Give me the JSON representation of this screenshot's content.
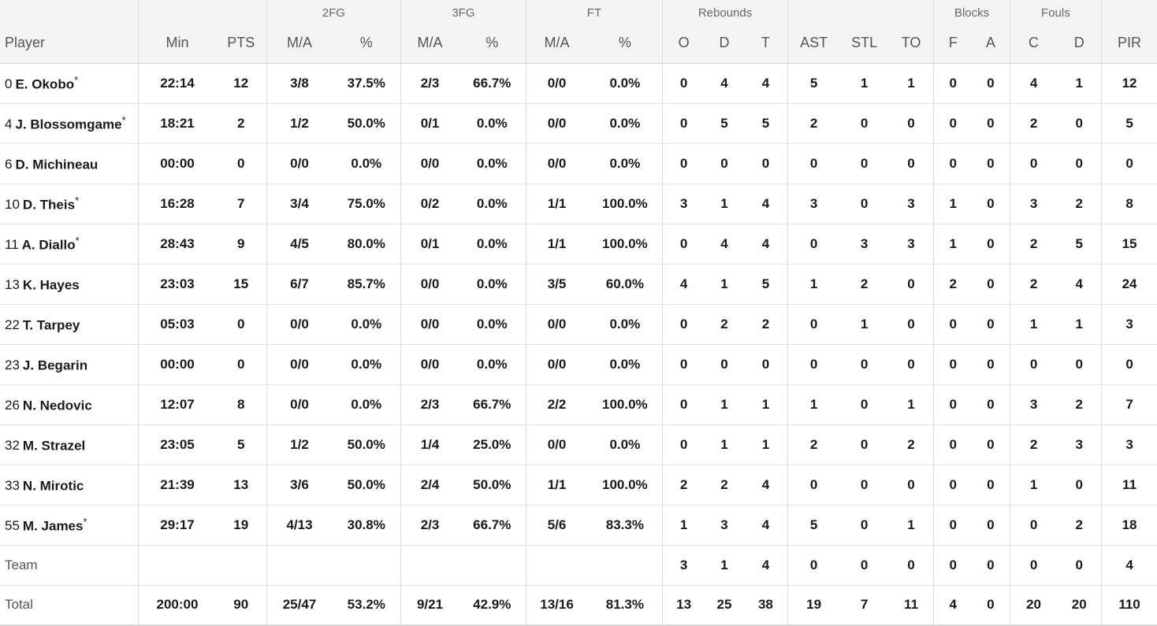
{
  "header": {
    "groups": {
      "fg2": "2FG",
      "fg3": "3FG",
      "ft": "FT",
      "rebounds": "Rebounds",
      "blocks": "Blocks",
      "fouls": "Fouls"
    },
    "columns": {
      "player": "Player",
      "min": "Min",
      "pts": "PTS",
      "fg2_ma": "M/A",
      "fg2_pct": "%",
      "fg3_ma": "M/A",
      "fg3_pct": "%",
      "ft_ma": "M/A",
      "ft_pct": "%",
      "reb_o": "O",
      "reb_d": "D",
      "reb_t": "T",
      "ast": "AST",
      "stl": "STL",
      "to": "TO",
      "blk_f": "F",
      "blk_a": "A",
      "foul_c": "C",
      "foul_d": "D",
      "pir": "PIR"
    }
  },
  "players": [
    {
      "num": "0",
      "name": "E. Okobo",
      "star": "*",
      "min": "22:14",
      "pts": "12",
      "fg2_ma": "3/8",
      "fg2_pct": "37.5%",
      "fg3_ma": "2/3",
      "fg3_pct": "66.7%",
      "ft_ma": "0/0",
      "ft_pct": "0.0%",
      "reb_o": "0",
      "reb_d": "4",
      "reb_t": "4",
      "ast": "5",
      "stl": "1",
      "to": "1",
      "blk_f": "0",
      "blk_a": "0",
      "foul_c": "4",
      "foul_d": "1",
      "pir": "12"
    },
    {
      "num": "4",
      "name": "J. Blossomgame",
      "star": "*",
      "min": "18:21",
      "pts": "2",
      "fg2_ma": "1/2",
      "fg2_pct": "50.0%",
      "fg3_ma": "0/1",
      "fg3_pct": "0.0%",
      "ft_ma": "0/0",
      "ft_pct": "0.0%",
      "reb_o": "0",
      "reb_d": "5",
      "reb_t": "5",
      "ast": "2",
      "stl": "0",
      "to": "0",
      "blk_f": "0",
      "blk_a": "0",
      "foul_c": "2",
      "foul_d": "0",
      "pir": "5"
    },
    {
      "num": "6",
      "name": "D. Michineau",
      "star": "",
      "min": "00:00",
      "pts": "0",
      "fg2_ma": "0/0",
      "fg2_pct": "0.0%",
      "fg3_ma": "0/0",
      "fg3_pct": "0.0%",
      "ft_ma": "0/0",
      "ft_pct": "0.0%",
      "reb_o": "0",
      "reb_d": "0",
      "reb_t": "0",
      "ast": "0",
      "stl": "0",
      "to": "0",
      "blk_f": "0",
      "blk_a": "0",
      "foul_c": "0",
      "foul_d": "0",
      "pir": "0"
    },
    {
      "num": "10",
      "name": "D. Theis",
      "star": "*",
      "min": "16:28",
      "pts": "7",
      "fg2_ma": "3/4",
      "fg2_pct": "75.0%",
      "fg3_ma": "0/2",
      "fg3_pct": "0.0%",
      "ft_ma": "1/1",
      "ft_pct": "100.0%",
      "reb_o": "3",
      "reb_d": "1",
      "reb_t": "4",
      "ast": "3",
      "stl": "0",
      "to": "3",
      "blk_f": "1",
      "blk_a": "0",
      "foul_c": "3",
      "foul_d": "2",
      "pir": "8"
    },
    {
      "num": "11",
      "name": "A. Diallo",
      "star": "*",
      "min": "28:43",
      "pts": "9",
      "fg2_ma": "4/5",
      "fg2_pct": "80.0%",
      "fg3_ma": "0/1",
      "fg3_pct": "0.0%",
      "ft_ma": "1/1",
      "ft_pct": "100.0%",
      "reb_o": "0",
      "reb_d": "4",
      "reb_t": "4",
      "ast": "0",
      "stl": "3",
      "to": "3",
      "blk_f": "1",
      "blk_a": "0",
      "foul_c": "2",
      "foul_d": "5",
      "pir": "15"
    },
    {
      "num": "13",
      "name": "K. Hayes",
      "star": "",
      "min": "23:03",
      "pts": "15",
      "fg2_ma": "6/7",
      "fg2_pct": "85.7%",
      "fg3_ma": "0/0",
      "fg3_pct": "0.0%",
      "ft_ma": "3/5",
      "ft_pct": "60.0%",
      "reb_o": "4",
      "reb_d": "1",
      "reb_t": "5",
      "ast": "1",
      "stl": "2",
      "to": "0",
      "blk_f": "2",
      "blk_a": "0",
      "foul_c": "2",
      "foul_d": "4",
      "pir": "24"
    },
    {
      "num": "22",
      "name": "T. Tarpey",
      "star": "",
      "min": "05:03",
      "pts": "0",
      "fg2_ma": "0/0",
      "fg2_pct": "0.0%",
      "fg3_ma": "0/0",
      "fg3_pct": "0.0%",
      "ft_ma": "0/0",
      "ft_pct": "0.0%",
      "reb_o": "0",
      "reb_d": "2",
      "reb_t": "2",
      "ast": "0",
      "stl": "1",
      "to": "0",
      "blk_f": "0",
      "blk_a": "0",
      "foul_c": "1",
      "foul_d": "1",
      "pir": "3"
    },
    {
      "num": "23",
      "name": "J. Begarin",
      "star": "",
      "min": "00:00",
      "pts": "0",
      "fg2_ma": "0/0",
      "fg2_pct": "0.0%",
      "fg3_ma": "0/0",
      "fg3_pct": "0.0%",
      "ft_ma": "0/0",
      "ft_pct": "0.0%",
      "reb_o": "0",
      "reb_d": "0",
      "reb_t": "0",
      "ast": "0",
      "stl": "0",
      "to": "0",
      "blk_f": "0",
      "blk_a": "0",
      "foul_c": "0",
      "foul_d": "0",
      "pir": "0"
    },
    {
      "num": "26",
      "name": "N. Nedovic",
      "star": "",
      "min": "12:07",
      "pts": "8",
      "fg2_ma": "0/0",
      "fg2_pct": "0.0%",
      "fg3_ma": "2/3",
      "fg3_pct": "66.7%",
      "ft_ma": "2/2",
      "ft_pct": "100.0%",
      "reb_o": "0",
      "reb_d": "1",
      "reb_t": "1",
      "ast": "1",
      "stl": "0",
      "to": "1",
      "blk_f": "0",
      "blk_a": "0",
      "foul_c": "3",
      "foul_d": "2",
      "pir": "7"
    },
    {
      "num": "32",
      "name": "M. Strazel",
      "star": "",
      "min": "23:05",
      "pts": "5",
      "fg2_ma": "1/2",
      "fg2_pct": "50.0%",
      "fg3_ma": "1/4",
      "fg3_pct": "25.0%",
      "ft_ma": "0/0",
      "ft_pct": "0.0%",
      "reb_o": "0",
      "reb_d": "1",
      "reb_t": "1",
      "ast": "2",
      "stl": "0",
      "to": "2",
      "blk_f": "0",
      "blk_a": "0",
      "foul_c": "2",
      "foul_d": "3",
      "pir": "3"
    },
    {
      "num": "33",
      "name": "N. Mirotic",
      "star": "",
      "min": "21:39",
      "pts": "13",
      "fg2_ma": "3/6",
      "fg2_pct": "50.0%",
      "fg3_ma": "2/4",
      "fg3_pct": "50.0%",
      "ft_ma": "1/1",
      "ft_pct": "100.0%",
      "reb_o": "2",
      "reb_d": "2",
      "reb_t": "4",
      "ast": "0",
      "stl": "0",
      "to": "0",
      "blk_f": "0",
      "blk_a": "0",
      "foul_c": "1",
      "foul_d": "0",
      "pir": "11"
    },
    {
      "num": "55",
      "name": "M. James",
      "star": "*",
      "min": "29:17",
      "pts": "19",
      "fg2_ma": "4/13",
      "fg2_pct": "30.8%",
      "fg3_ma": "2/3",
      "fg3_pct": "66.7%",
      "ft_ma": "5/6",
      "ft_pct": "83.3%",
      "reb_o": "1",
      "reb_d": "3",
      "reb_t": "4",
      "ast": "5",
      "stl": "0",
      "to": "1",
      "blk_f": "0",
      "blk_a": "0",
      "foul_c": "0",
      "foul_d": "2",
      "pir": "18"
    }
  ],
  "team": {
    "label": "Team",
    "min": "",
    "pts": "",
    "fg2_ma": "",
    "fg2_pct": "",
    "fg3_ma": "",
    "fg3_pct": "",
    "ft_ma": "",
    "ft_pct": "",
    "reb_o": "3",
    "reb_d": "1",
    "reb_t": "4",
    "ast": "0",
    "stl": "0",
    "to": "0",
    "blk_f": "0",
    "blk_a": "0",
    "foul_c": "0",
    "foul_d": "0",
    "pir": "4"
  },
  "total": {
    "label": "Total",
    "min": "200:00",
    "pts": "90",
    "fg2_ma": "25/47",
    "fg2_pct": "53.2%",
    "fg3_ma": "9/21",
    "fg3_pct": "42.9%",
    "ft_ma": "13/16",
    "ft_pct": "81.3%",
    "reb_o": "13",
    "reb_d": "25",
    "reb_t": "38",
    "ast": "19",
    "stl": "7",
    "to": "11",
    "blk_f": "4",
    "blk_a": "0",
    "foul_c": "20",
    "foul_d": "20",
    "pir": "110"
  }
}
